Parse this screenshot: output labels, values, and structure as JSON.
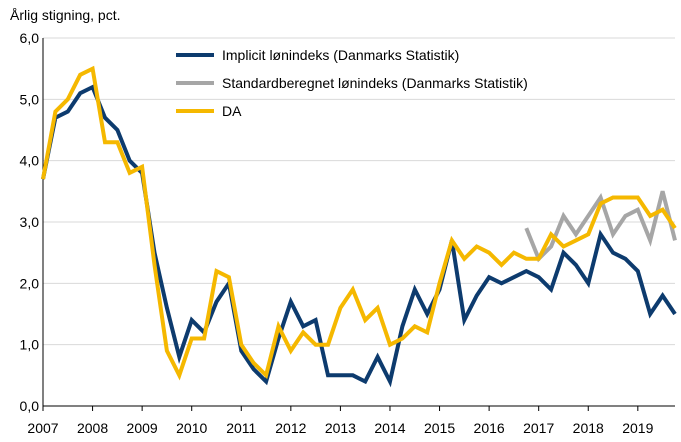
{
  "chart_data": {
    "type": "line",
    "title": "",
    "ylabel": "Årlig stigning, pct.",
    "xlabel": "",
    "ylim": [
      0,
      6
    ],
    "yticks": [
      "0,0",
      "1,0",
      "2,0",
      "3,0",
      "4,0",
      "5,0",
      "6,0"
    ],
    "ytick_values": [
      0,
      1,
      2,
      3,
      4,
      5,
      6
    ],
    "xlim": [
      2007,
      2019.75
    ],
    "xticks": [
      "2007",
      "2008",
      "2009",
      "2010",
      "2011",
      "2012",
      "2013",
      "2014",
      "2015",
      "2016",
      "2017",
      "2018",
      "2019"
    ],
    "xtick_values": [
      2007,
      2008,
      2009,
      2010,
      2011,
      2012,
      2013,
      2014,
      2015,
      2016,
      2017,
      2018,
      2019
    ],
    "grid": "horizontal",
    "legend": "top-center",
    "series": [
      {
        "name": "Implicit lønindeks (Danmarks Statistik)",
        "color": "#0d3b6e",
        "x": [
          2007.0,
          2007.25,
          2007.5,
          2007.75,
          2008.0,
          2008.25,
          2008.5,
          2008.75,
          2009.0,
          2009.25,
          2009.5,
          2009.75,
          2010.0,
          2010.25,
          2010.5,
          2010.75,
          2011.0,
          2011.25,
          2011.5,
          2011.75,
          2012.0,
          2012.25,
          2012.5,
          2012.75,
          2013.0,
          2013.25,
          2013.5,
          2013.75,
          2014.0,
          2014.25,
          2014.5,
          2014.75,
          2015.0,
          2015.25,
          2015.5,
          2015.75,
          2016.0,
          2016.25,
          2016.5,
          2016.75,
          2017.0,
          2017.25,
          2017.5,
          2017.75,
          2018.0,
          2018.25,
          2018.5,
          2018.75,
          2019.0,
          2019.25,
          2019.5,
          2019.75
        ],
        "values": [
          3.7,
          4.7,
          4.8,
          5.1,
          5.2,
          4.7,
          4.5,
          4.0,
          3.8,
          2.5,
          1.6,
          0.8,
          1.4,
          1.2,
          1.7,
          2.0,
          0.9,
          0.6,
          0.4,
          1.1,
          1.7,
          1.3,
          1.4,
          0.5,
          0.5,
          0.5,
          0.4,
          0.8,
          0.4,
          1.3,
          1.9,
          1.5,
          1.9,
          2.7,
          1.4,
          1.8,
          2.1,
          2.0,
          2.1,
          2.2,
          2.1,
          1.9,
          2.5,
          2.3,
          2.0,
          2.8,
          2.5,
          2.4,
          2.2,
          1.5,
          1.8,
          1.5
        ]
      },
      {
        "name": "Standardberegnet lønindeks (Danmarks Statistik)",
        "color": "#a6a6a6",
        "x": [
          2016.75,
          2017.0,
          2017.25,
          2017.5,
          2017.75,
          2018.0,
          2018.25,
          2018.5,
          2018.75,
          2019.0,
          2019.25,
          2019.5,
          2019.75
        ],
        "values": [
          2.9,
          2.4,
          2.6,
          3.1,
          2.8,
          3.1,
          3.4,
          2.8,
          3.1,
          3.2,
          2.7,
          3.5,
          2.7
        ]
      },
      {
        "name": "DA",
        "color": "#f5b800",
        "x": [
          2007.0,
          2007.25,
          2007.5,
          2007.75,
          2008.0,
          2008.25,
          2008.5,
          2008.75,
          2009.0,
          2009.25,
          2009.5,
          2009.75,
          2010.0,
          2010.25,
          2010.5,
          2010.75,
          2011.0,
          2011.25,
          2011.5,
          2011.75,
          2012.0,
          2012.25,
          2012.5,
          2012.75,
          2013.0,
          2013.25,
          2013.5,
          2013.75,
          2014.0,
          2014.25,
          2014.5,
          2014.75,
          2015.0,
          2015.25,
          2015.5,
          2015.75,
          2016.0,
          2016.25,
          2016.5,
          2016.75,
          2017.0,
          2017.25,
          2017.5,
          2017.75,
          2018.0,
          2018.25,
          2018.5,
          2018.75,
          2019.0,
          2019.25,
          2019.5,
          2019.75
        ],
        "values": [
          3.7,
          4.8,
          5.0,
          5.4,
          5.5,
          4.3,
          4.3,
          3.8,
          3.9,
          2.3,
          0.9,
          0.5,
          1.1,
          1.1,
          2.2,
          2.1,
          1.0,
          0.7,
          0.5,
          1.3,
          0.9,
          1.2,
          1.0,
          1.0,
          1.6,
          1.9,
          1.4,
          1.6,
          1.0,
          1.1,
          1.3,
          1.2,
          2.0,
          2.7,
          2.4,
          2.6,
          2.5,
          2.3,
          2.5,
          2.4,
          2.4,
          2.8,
          2.6,
          2.7,
          2.8,
          3.3,
          3.4,
          3.4,
          3.4,
          3.1,
          3.2,
          2.9
        ]
      }
    ]
  }
}
